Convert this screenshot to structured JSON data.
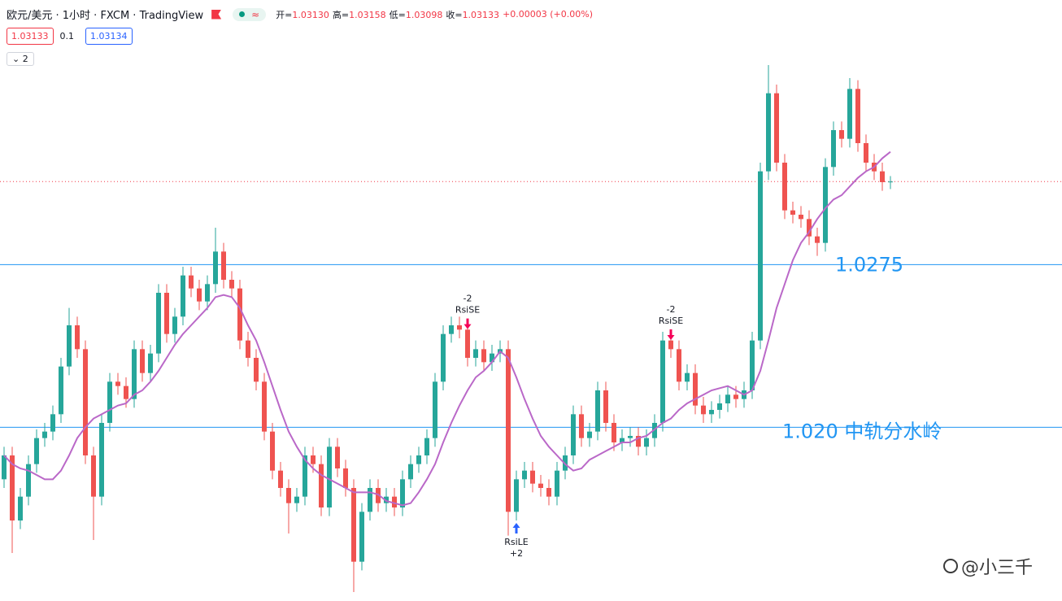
{
  "header": {
    "title": "欧元/美元 · 1小时 · FXCM · TradingView",
    "ohlc": [
      {
        "label": "开=",
        "value": "1.03130"
      },
      {
        "label": "高=",
        "value": "1.03158"
      },
      {
        "label": "低=",
        "value": "1.03098"
      },
      {
        "label": "收=",
        "value": "1.03133"
      }
    ],
    "change": "+0.00003 (+0.00%)",
    "quotes": {
      "sell": "1.03133",
      "spread": "0.1",
      "buy": "1.03134"
    },
    "indicators_toggle": "2"
  },
  "watermark": "@小三千",
  "chart_data": {
    "type": "candlestick",
    "ylim": [
      1.0124,
      1.0397
    ],
    "up_color": "#26a69a",
    "down_color": "#ef5350",
    "candles": [
      [
        1.0176,
        1.0191,
        1.0172,
        1.0187
      ],
      [
        1.0187,
        1.0191,
        1.0142,
        1.0157
      ],
      [
        1.0157,
        1.0172,
        1.0153,
        1.0168
      ],
      [
        1.0168,
        1.0187,
        1.0164,
        1.0183
      ],
      [
        1.0183,
        1.0199,
        1.0179,
        1.0195
      ],
      [
        1.0195,
        1.0202,
        1.0191,
        1.0198
      ],
      [
        1.0198,
        1.021,
        1.0194,
        1.0206
      ],
      [
        1.0206,
        1.0232,
        1.0202,
        1.0228
      ],
      [
        1.0228,
        1.0255,
        1.0224,
        1.0247
      ],
      [
        1.0247,
        1.0251,
        1.0232,
        1.0236
      ],
      [
        1.0236,
        1.024,
        1.0183,
        1.0187
      ],
      [
        1.0187,
        1.0191,
        1.0148,
        1.0168
      ],
      [
        1.0168,
        1.0206,
        1.0164,
        1.0202
      ],
      [
        1.0202,
        1.0225,
        1.0198,
        1.0221
      ],
      [
        1.0221,
        1.0225,
        1.0215,
        1.0219
      ],
      [
        1.0219,
        1.0223,
        1.0209,
        1.0213
      ],
      [
        1.0213,
        1.024,
        1.0209,
        1.0236
      ],
      [
        1.0236,
        1.024,
        1.0221,
        1.0225
      ],
      [
        1.0225,
        1.0238,
        1.0221,
        1.0234
      ],
      [
        1.0234,
        1.0266,
        1.023,
        1.0262
      ],
      [
        1.0262,
        1.0266,
        1.0239,
        1.0243
      ],
      [
        1.0243,
        1.0255,
        1.0239,
        1.0251
      ],
      [
        1.0251,
        1.0274,
        1.0247,
        1.027
      ],
      [
        1.027,
        1.0274,
        1.026,
        1.0264
      ],
      [
        1.0264,
        1.0268,
        1.0254,
        1.0258
      ],
      [
        1.0258,
        1.027,
        1.0254,
        1.0266
      ],
      [
        1.0266,
        1.0292,
        1.0262,
        1.0281
      ],
      [
        1.0281,
        1.0285,
        1.0264,
        1.0268
      ],
      [
        1.0268,
        1.0272,
        1.026,
        1.0264
      ],
      [
        1.0264,
        1.0268,
        1.0236,
        1.024
      ],
      [
        1.024,
        1.0244,
        1.0228,
        1.0232
      ],
      [
        1.0232,
        1.0236,
        1.0217,
        1.0221
      ],
      [
        1.0221,
        1.0225,
        1.0194,
        1.0198
      ],
      [
        1.0198,
        1.0202,
        1.0176,
        1.018
      ],
      [
        1.018,
        1.0184,
        1.0168,
        1.0172
      ],
      [
        1.0172,
        1.0176,
        1.0151,
        1.0165
      ],
      [
        1.0165,
        1.0172,
        1.0161,
        1.0168
      ],
      [
        1.0168,
        1.0191,
        1.0164,
        1.0187
      ],
      [
        1.0187,
        1.0191,
        1.0179,
        1.0183
      ],
      [
        1.0183,
        1.0187,
        1.0159,
        1.0163
      ],
      [
        1.0163,
        1.0195,
        1.0159,
        1.0191
      ],
      [
        1.0191,
        1.0195,
        1.0177,
        1.0181
      ],
      [
        1.0181,
        1.0185,
        1.0168,
        1.0172
      ],
      [
        1.0172,
        1.0176,
        1.0124,
        1.0138
      ],
      [
        1.0138,
        1.0165,
        1.0134,
        1.0161
      ],
      [
        1.0161,
        1.0176,
        1.0157,
        1.0172
      ],
      [
        1.0172,
        1.0176,
        1.0161,
        1.0165
      ],
      [
        1.0165,
        1.0172,
        1.0161,
        1.0168
      ],
      [
        1.0168,
        1.0172,
        1.0159,
        1.0163
      ],
      [
        1.0163,
        1.018,
        1.0159,
        1.0176
      ],
      [
        1.0176,
        1.0187,
        1.0172,
        1.0183
      ],
      [
        1.0183,
        1.0191,
        1.0179,
        1.0187
      ],
      [
        1.0187,
        1.0199,
        1.0183,
        1.0195
      ],
      [
        1.0195,
        1.0225,
        1.0191,
        1.0221
      ],
      [
        1.0221,
        1.0247,
        1.0217,
        1.0243
      ],
      [
        1.0243,
        1.0251,
        1.0239,
        1.0247
      ],
      [
        1.0247,
        1.0251,
        1.0241,
        1.0245
      ],
      [
        1.0245,
        1.0249,
        1.0228,
        1.0232
      ],
      [
        1.0232,
        1.024,
        1.0228,
        1.0236
      ],
      [
        1.0236,
        1.024,
        1.0226,
        1.023
      ],
      [
        1.023,
        1.0238,
        1.0226,
        1.0234
      ],
      [
        1.0234,
        1.024,
        1.023,
        1.0236
      ],
      [
        1.0236,
        1.024,
        1.015,
        1.0161
      ],
      [
        1.0161,
        1.018,
        1.0157,
        1.0176
      ],
      [
        1.0176,
        1.0184,
        1.0172,
        1.018
      ],
      [
        1.018,
        1.0184,
        1.017,
        1.0174
      ],
      [
        1.0174,
        1.0178,
        1.0168,
        1.0172
      ],
      [
        1.0172,
        1.0176,
        1.0164,
        1.0168
      ],
      [
        1.0168,
        1.0184,
        1.0164,
        1.018
      ],
      [
        1.018,
        1.0191,
        1.0176,
        1.0187
      ],
      [
        1.0187,
        1.021,
        1.0183,
        1.0206
      ],
      [
        1.0206,
        1.021,
        1.0191,
        1.0195
      ],
      [
        1.0195,
        1.0202,
        1.0191,
        1.0198
      ],
      [
        1.0198,
        1.0221,
        1.0194,
        1.0217
      ],
      [
        1.0217,
        1.0221,
        1.0198,
        1.0202
      ],
      [
        1.0202,
        1.0206,
        1.0189,
        1.0193
      ],
      [
        1.0193,
        1.0199,
        1.0189,
        1.0195
      ],
      [
        1.0195,
        1.02,
        1.0191,
        1.0196
      ],
      [
        1.0196,
        1.02,
        1.0187,
        1.0191
      ],
      [
        1.0191,
        1.0199,
        1.0187,
        1.0195
      ],
      [
        1.0195,
        1.0206,
        1.0191,
        1.0202
      ],
      [
        1.0202,
        1.0244,
        1.0198,
        1.024
      ],
      [
        1.024,
        1.0244,
        1.0232,
        1.0236
      ],
      [
        1.0236,
        1.024,
        1.0217,
        1.0221
      ],
      [
        1.0221,
        1.0229,
        1.0217,
        1.0225
      ],
      [
        1.0225,
        1.0229,
        1.0206,
        1.021
      ],
      [
        1.021,
        1.0214,
        1.0202,
        1.0206
      ],
      [
        1.0206,
        1.0212,
        1.0202,
        1.0208
      ],
      [
        1.0208,
        1.0215,
        1.0204,
        1.0211
      ],
      [
        1.0211,
        1.0219,
        1.0207,
        1.0215
      ],
      [
        1.0215,
        1.0219,
        1.0209,
        1.0213
      ],
      [
        1.0213,
        1.0221,
        1.0209,
        1.0217
      ],
      [
        1.0217,
        1.0244,
        1.0213,
        1.024
      ],
      [
        1.024,
        1.0322,
        1.0236,
        1.0318
      ],
      [
        1.0318,
        1.0367,
        1.0314,
        1.0354
      ],
      [
        1.0354,
        1.0358,
        1.0318,
        1.0322
      ],
      [
        1.0322,
        1.0326,
        1.0296,
        1.03
      ],
      [
        1.03,
        1.0304,
        1.0294,
        1.0298
      ],
      [
        1.0298,
        1.0302,
        1.0292,
        1.0296
      ],
      [
        1.0296,
        1.03,
        1.0284,
        1.0288
      ],
      [
        1.0288,
        1.0292,
        1.0279,
        1.0285
      ],
      [
        1.0285,
        1.0324,
        1.0281,
        1.032
      ],
      [
        1.032,
        1.0341,
        1.0316,
        1.0337
      ],
      [
        1.0337,
        1.0341,
        1.0329,
        1.0333
      ],
      [
        1.0333,
        1.0361,
        1.0329,
        1.0356
      ],
      [
        1.0356,
        1.036,
        1.0327,
        1.0331
      ],
      [
        1.0331,
        1.0335,
        1.0318,
        1.0322
      ],
      [
        1.0322,
        1.0326,
        1.0314,
        1.0318
      ],
      [
        1.0318,
        1.0322,
        1.0309,
        1.0313
      ],
      [
        1.0313,
        1.03158,
        1.03098,
        1.03133
      ]
    ],
    "ma": {
      "color": "#ba68c8",
      "values": [
        1.0187,
        1.0183,
        1.0181,
        1.018,
        1.0178,
        1.0176,
        1.0176,
        1.018,
        1.0187,
        1.0195,
        1.02,
        1.0204,
        1.0206,
        1.0208,
        1.021,
        1.0211,
        1.0215,
        1.0217,
        1.0221,
        1.0226,
        1.0232,
        1.0238,
        1.0243,
        1.0247,
        1.0251,
        1.0255,
        1.026,
        1.0261,
        1.026,
        1.0255,
        1.0247,
        1.024,
        1.023,
        1.0219,
        1.0208,
        1.0198,
        1.0191,
        1.0185,
        1.0181,
        1.0178,
        1.0176,
        1.0174,
        1.0172,
        1.017,
        1.017,
        1.017,
        1.0169,
        1.0166,
        1.0165,
        1.0164,
        1.0165,
        1.017,
        1.0176,
        1.0183,
        1.0193,
        1.0202,
        1.021,
        1.0217,
        1.0223,
        1.0226,
        1.023,
        1.0235,
        1.0232,
        1.0223,
        1.0213,
        1.0204,
        1.0196,
        1.0191,
        1.0187,
        1.0183,
        1.018,
        1.0181,
        1.0185,
        1.0187,
        1.0189,
        1.0191,
        1.0193,
        1.0193,
        1.0195,
        1.0196,
        1.0199,
        1.0202,
        1.0204,
        1.0208,
        1.0211,
        1.0213,
        1.0215,
        1.0217,
        1.0218,
        1.0219,
        1.0217,
        1.0215,
        1.0217,
        1.0226,
        1.024,
        1.0255,
        1.0266,
        1.0277,
        1.0285,
        1.029,
        1.0296,
        1.0301,
        1.0305,
        1.0307,
        1.0311,
        1.0315,
        1.0318,
        1.032,
        1.0324,
        1.0327
      ]
    },
    "levels": [
      {
        "value": 1.0275,
        "label": "1.0275"
      },
      {
        "value": 1.02,
        "label": "1.020 中轨分水岭"
      }
    ],
    "level_color": "#2196f3",
    "last_price_color": "#f23645",
    "signals": [
      {
        "at": 57,
        "qty": "-2",
        "label": "RsiSE",
        "side": "short"
      },
      {
        "at": 63,
        "qty": "+2",
        "label": "RsiLE",
        "side": "long"
      },
      {
        "at": 82,
        "qty": "-2",
        "label": "RsiSE",
        "side": "short"
      }
    ]
  }
}
